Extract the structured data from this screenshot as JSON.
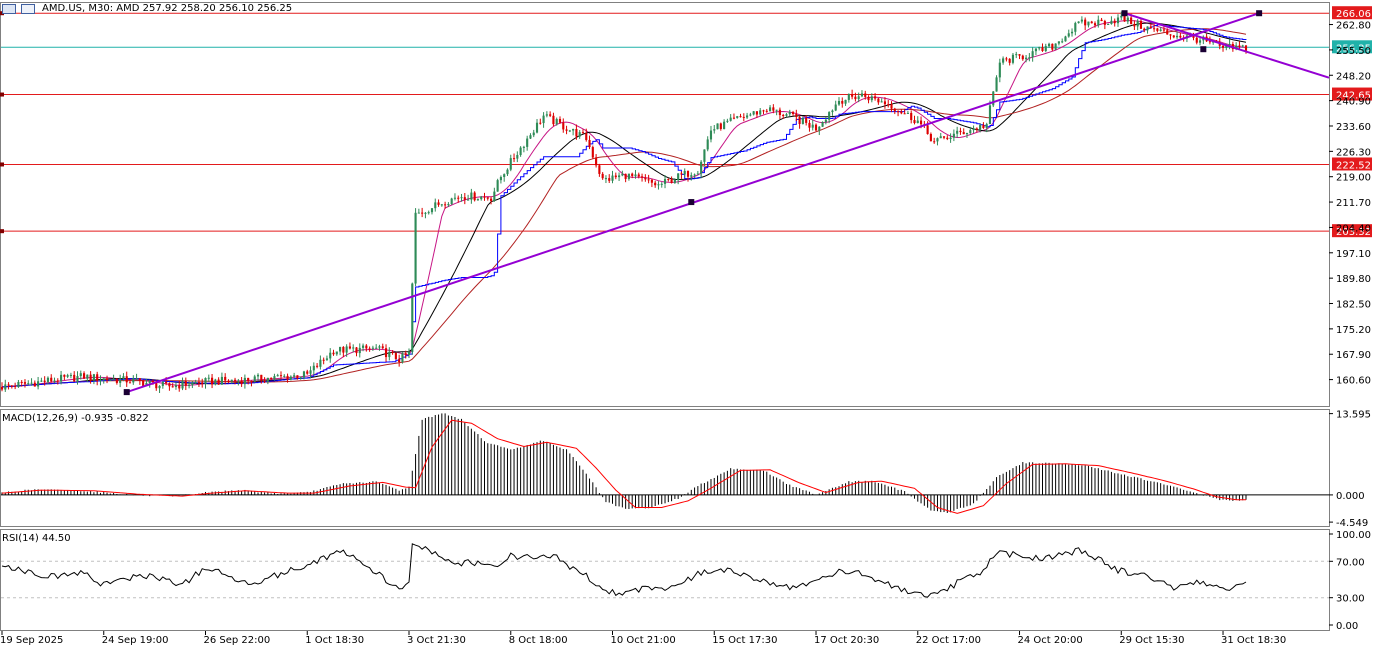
{
  "header": {
    "symbol_line": "AMD.US, M30:  AMD  257.92 258.20 256.10 256.25"
  },
  "colors": {
    "up_candle": "#2e8b57",
    "down_candle": "#dd0000",
    "level_line": "#e31a1c",
    "current_price_line": "#20b2aa",
    "trendline": "#9400d3",
    "ma_black": "#000000",
    "ma_red": "#b22222",
    "ma_violet": "#c71585",
    "ichimoku_blue": "#0000ff",
    "macd_hist": "#000000",
    "macd_signal": "#ff0000",
    "rsi": "#000000"
  },
  "chart_data": [
    {
      "type": "candlestick",
      "title": "AMD.US, M30",
      "ylim": [
        153,
        269
      ],
      "y_ticks": [
        "262.80",
        "255.50",
        "248.20",
        "240.90",
        "233.60",
        "226.30",
        "219.00",
        "211.70",
        "204.40",
        "197.10",
        "189.80",
        "182.50",
        "175.20",
        "167.90",
        "160.60"
      ],
      "x_tick_labels": [
        "19 Sep 2025",
        "24 Sep 19:00",
        "26 Sep 22:00",
        "1 Oct 18:30",
        "3 Oct 21:30",
        "8 Oct 18:00",
        "10 Oct 21:00",
        "15 Oct 17:30",
        "17 Oct 20:30",
        "22 Oct 17:00",
        "24 Oct 20:00",
        "29 Oct 15:30",
        "31 Oct 18:30"
      ],
      "x_tick_indices": [
        0,
        31,
        62,
        93,
        124,
        155,
        186,
        217,
        248,
        279,
        310,
        341,
        372
      ],
      "bars_count": 380,
      "price_path_anchors": [
        [
          0,
          158.5
        ],
        [
          18,
          160.8
        ],
        [
          25,
          161.5
        ],
        [
          31,
          160.8
        ],
        [
          40,
          160.3
        ],
        [
          50,
          158.6
        ],
        [
          62,
          160.0
        ],
        [
          72,
          160.4
        ],
        [
          85,
          161.3
        ],
        [
          93,
          162.0
        ],
        [
          101,
          169.0
        ],
        [
          114,
          169.5
        ],
        [
          121,
          166.5
        ],
        [
          124,
          168.0
        ],
        [
          126,
          208.0
        ],
        [
          135,
          212.0
        ],
        [
          140,
          213.5
        ],
        [
          149,
          213.0
        ],
        [
          152,
          219.0
        ],
        [
          157,
          226.0
        ],
        [
          165,
          236.5
        ],
        [
          172,
          233.0
        ],
        [
          178,
          230.0
        ],
        [
          183,
          218.0
        ],
        [
          190,
          219.5
        ],
        [
          200,
          216.5
        ],
        [
          206,
          219.0
        ],
        [
          212,
          221.0
        ],
        [
          216,
          232.5
        ],
        [
          225,
          236.0
        ],
        [
          233,
          238.5
        ],
        [
          240,
          236.5
        ],
        [
          248,
          233.0
        ],
        [
          255,
          241.0
        ],
        [
          262,
          242.5
        ],
        [
          270,
          240.0
        ],
        [
          279,
          235.0
        ],
        [
          284,
          229.0
        ],
        [
          290,
          231.0
        ],
        [
          300,
          234.0
        ],
        [
          304,
          252.0
        ],
        [
          312,
          254.0
        ],
        [
          320,
          256.5
        ],
        [
          328,
          263.0
        ],
        [
          335,
          263.5
        ],
        [
          341,
          264.5
        ],
        [
          348,
          262.0
        ],
        [
          356,
          260.0
        ],
        [
          365,
          258.5
        ],
        [
          372,
          256.0
        ],
        [
          379,
          256.25
        ]
      ],
      "horizontal_levels": [
        {
          "price": 266.06,
          "label": "266.06"
        },
        {
          "price": 242.65,
          "label": "242.65"
        },
        {
          "price": 222.52,
          "label": "222.52"
        },
        {
          "price": 203.32,
          "label": "203.32"
        }
      ],
      "current_price": {
        "price": 256.25,
        "label": "256.25"
      },
      "trendlines": [
        {
          "from": [
            38,
            157.0
          ],
          "to": [
            383,
            266.06
          ]
        },
        {
          "from": [
            342,
            266.06
          ],
          "to": [
            406,
            247.0
          ]
        }
      ],
      "trendline_markers": [
        [
          38,
          157.0
        ],
        [
          210,
          211.7
        ],
        [
          342,
          266.06
        ],
        [
          383,
          266.06
        ],
        [
          366,
          255.7
        ]
      ]
    },
    {
      "type": "bar",
      "title": "MACD(12,26,9) -0.935 -0.822",
      "ylim": [
        -5.2,
        14.2
      ],
      "y_ticks": [
        "13.595",
        "0.000",
        "-4.549"
      ],
      "macd_anchors": [
        [
          0,
          0.4
        ],
        [
          10,
          0.9
        ],
        [
          25,
          0.7
        ],
        [
          40,
          0.0
        ],
        [
          52,
          -0.3
        ],
        [
          62,
          0.4
        ],
        [
          72,
          0.8
        ],
        [
          85,
          0.2
        ],
        [
          93,
          0.4
        ],
        [
          104,
          1.9
        ],
        [
          114,
          2.2
        ],
        [
          121,
          0.8
        ],
        [
          124,
          1.3
        ],
        [
          128,
          12.6
        ],
        [
          134,
          13.7
        ],
        [
          140,
          12.6
        ],
        [
          148,
          8.6
        ],
        [
          156,
          7.6
        ],
        [
          164,
          9.1
        ],
        [
          172,
          7.6
        ],
        [
          178,
          3.6
        ],
        [
          184,
          -1.2
        ],
        [
          190,
          -2.4
        ],
        [
          198,
          -2.1
        ],
        [
          206,
          -0.6
        ],
        [
          212,
          1.5
        ],
        [
          222,
          4.4
        ],
        [
          232,
          4.1
        ],
        [
          240,
          1.6
        ],
        [
          248,
          0.1
        ],
        [
          258,
          2.2
        ],
        [
          265,
          2.3
        ],
        [
          275,
          0.6
        ],
        [
          283,
          -2.6
        ],
        [
          288,
          -3.0
        ],
        [
          296,
          -1.5
        ],
        [
          303,
          2.9
        ],
        [
          311,
          5.4
        ],
        [
          320,
          5.3
        ],
        [
          330,
          4.9
        ],
        [
          340,
          3.6
        ],
        [
          350,
          2.3
        ],
        [
          360,
          0.9
        ],
        [
          367,
          -0.2
        ],
        [
          372,
          -0.9
        ],
        [
          379,
          -0.935
        ]
      ],
      "signal_anchors": [
        [
          0,
          0.3
        ],
        [
          12,
          0.8
        ],
        [
          28,
          0.7
        ],
        [
          42,
          0.1
        ],
        [
          55,
          -0.2
        ],
        [
          64,
          0.3
        ],
        [
          74,
          0.7
        ],
        [
          87,
          0.3
        ],
        [
          95,
          0.3
        ],
        [
          106,
          1.5
        ],
        [
          116,
          2.1
        ],
        [
          123,
          1.3
        ],
        [
          126,
          1.2
        ],
        [
          131,
          8.0
        ],
        [
          137,
          12.5
        ],
        [
          143,
          12.0
        ],
        [
          151,
          9.4
        ],
        [
          159,
          8.1
        ],
        [
          166,
          8.8
        ],
        [
          175,
          7.8
        ],
        [
          181,
          4.5
        ],
        [
          187,
          0.8
        ],
        [
          193,
          -2.1
        ],
        [
          201,
          -2.1
        ],
        [
          209,
          -1.0
        ],
        [
          215,
          0.8
        ],
        [
          225,
          4.1
        ],
        [
          234,
          4.2
        ],
        [
          243,
          2.0
        ],
        [
          251,
          0.4
        ],
        [
          261,
          2.1
        ],
        [
          268,
          2.3
        ],
        [
          278,
          1.1
        ],
        [
          285,
          -2.1
        ],
        [
          291,
          -3.1
        ],
        [
          299,
          -1.8
        ],
        [
          306,
          1.9
        ],
        [
          314,
          5.1
        ],
        [
          324,
          5.2
        ],
        [
          334,
          4.9
        ],
        [
          344,
          3.7
        ],
        [
          354,
          2.4
        ],
        [
          363,
          1.0
        ],
        [
          370,
          -0.3
        ],
        [
          376,
          -0.8
        ],
        [
          379,
          -0.822
        ]
      ]
    },
    {
      "type": "line",
      "title": "RSI(14) 44.50",
      "ylim": [
        0,
        100
      ],
      "y_ticks": [
        "100.00",
        "70.00",
        "30.00",
        "0.00"
      ],
      "levels": [
        70,
        30
      ],
      "rsi_anchors": [
        [
          0,
          67
        ],
        [
          8,
          58
        ],
        [
          16,
          53
        ],
        [
          24,
          58
        ],
        [
          30,
          46
        ],
        [
          36,
          48
        ],
        [
          42,
          55
        ],
        [
          48,
          52
        ],
        [
          55,
          44
        ],
        [
          62,
          63
        ],
        [
          68,
          55
        ],
        [
          75,
          45
        ],
        [
          82,
          53
        ],
        [
          90,
          62
        ],
        [
          96,
          71
        ],
        [
          103,
          81
        ],
        [
          110,
          68
        ],
        [
          116,
          52
        ],
        [
          121,
          38
        ],
        [
          124,
          44
        ],
        [
          125,
          92
        ],
        [
          131,
          80
        ],
        [
          137,
          67
        ],
        [
          143,
          69
        ],
        [
          149,
          63
        ],
        [
          155,
          76
        ],
        [
          162,
          74
        ],
        [
          168,
          76
        ],
        [
          173,
          64
        ],
        [
          178,
          54
        ],
        [
          184,
          38
        ],
        [
          190,
          34
        ],
        [
          196,
          42
        ],
        [
          202,
          40
        ],
        [
          208,
          48
        ],
        [
          212,
          56
        ],
        [
          216,
          60
        ],
        [
          222,
          59
        ],
        [
          228,
          54
        ],
        [
          234,
          44
        ],
        [
          240,
          42
        ],
        [
          248,
          48
        ],
        [
          254,
          58
        ],
        [
          260,
          60
        ],
        [
          266,
          50
        ],
        [
          272,
          41
        ],
        [
          278,
          34
        ],
        [
          282,
          30
        ],
        [
          288,
          38
        ],
        [
          292,
          50
        ],
        [
          298,
          54
        ],
        [
          303,
          80
        ],
        [
          309,
          77
        ],
        [
          315,
          73
        ],
        [
          322,
          77
        ],
        [
          328,
          82
        ],
        [
          334,
          73
        ],
        [
          340,
          60
        ],
        [
          346,
          56
        ],
        [
          352,
          50
        ],
        [
          358,
          40
        ],
        [
          364,
          46
        ],
        [
          370,
          43
        ],
        [
          375,
          40
        ],
        [
          379,
          44.5
        ]
      ]
    }
  ]
}
